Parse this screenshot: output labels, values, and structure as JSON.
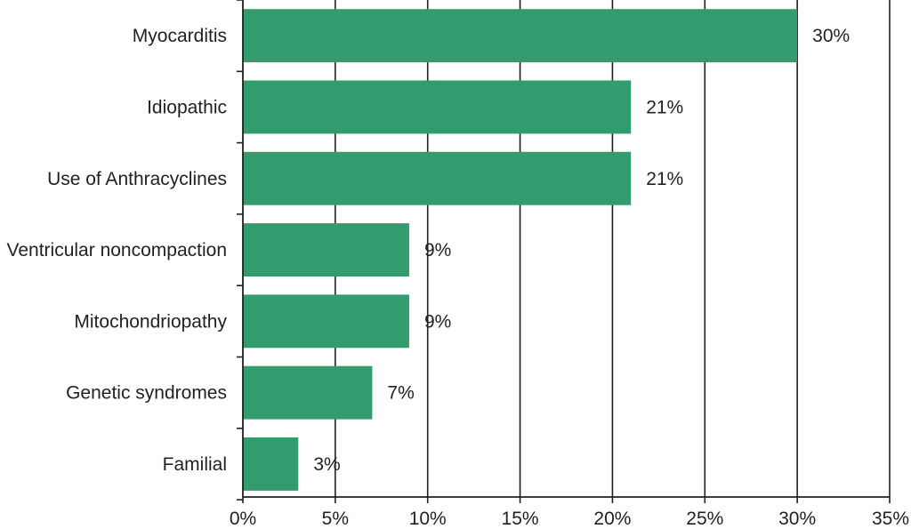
{
  "chart_data": {
    "type": "bar",
    "orientation": "horizontal",
    "categories": [
      "Myocarditis",
      "Idiopathic",
      "Use of Anthracyclines",
      "Ventricular noncompaction",
      "Mitochondriopathy",
      "Genetic syndromes",
      "Familial"
    ],
    "values": [
      30,
      21,
      21,
      9,
      9,
      7,
      3
    ],
    "value_labels": [
      "30%",
      "21%",
      "21%",
      "9%",
      "9%",
      "7%",
      "3%"
    ],
    "xlim": [
      0,
      35
    ],
    "xticks": [
      0,
      5,
      10,
      15,
      20,
      25,
      30,
      35
    ],
    "xtick_labels": [
      "0%",
      "5%",
      "10%",
      "15%",
      "20%",
      "25%",
      "30%",
      "35%"
    ],
    "title": "",
    "xlabel": "",
    "ylabel": "",
    "grid": "vertical",
    "legend": "none",
    "bar_color": "#339c6f",
    "grid_color": "#231f20",
    "text_color": "#231f20"
  }
}
